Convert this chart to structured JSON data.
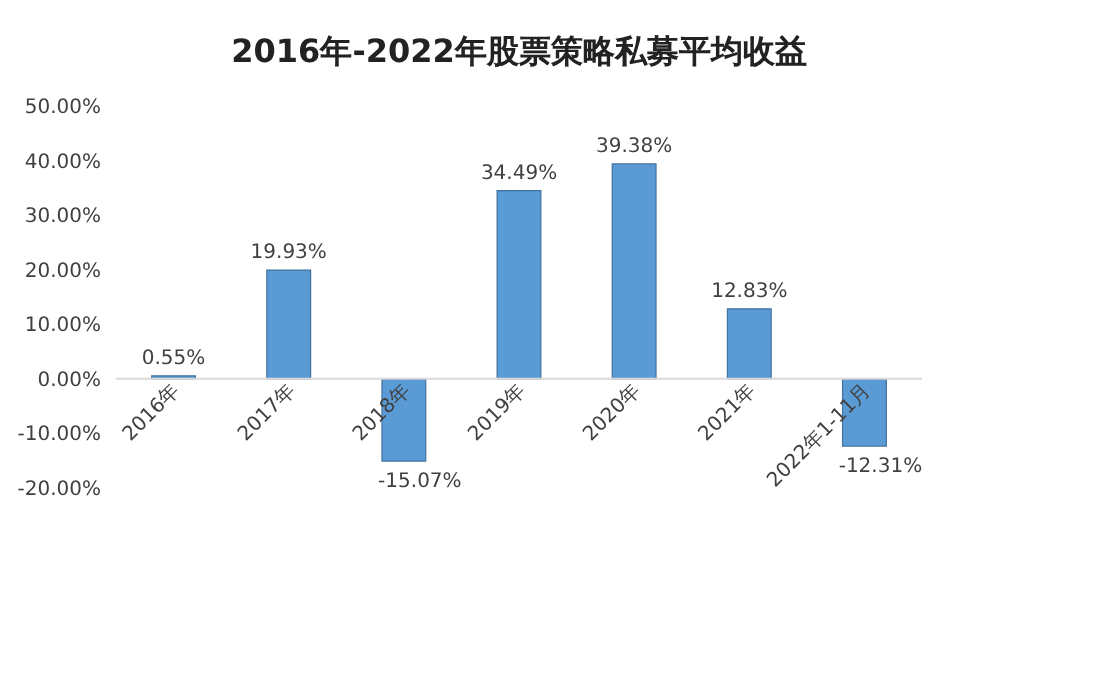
{
  "chart_data": {
    "type": "bar",
    "title": "2016年-2022年股票策略私募平均收益",
    "categories": [
      "2016年",
      "2017年",
      "2018年",
      "2019年",
      "2020年",
      "2021年",
      "2022年1-11月"
    ],
    "values": [
      0.55,
      19.93,
      -15.07,
      34.49,
      39.38,
      12.83,
      -12.31
    ],
    "value_labels": [
      "0.55%",
      "19.93%",
      "-15.07%",
      "34.49%",
      "39.38%",
      "12.83%",
      "-12.31%"
    ],
    "color": "#5b9bd5",
    "ylim": [
      -20,
      50
    ],
    "yticks": [
      {
        "value": -20,
        "label": "-20.00%"
      },
      {
        "value": -10,
        "label": "-10.00%"
      },
      {
        "value": 0,
        "label": "0.00%"
      },
      {
        "value": 10,
        "label": "10.00%"
      },
      {
        "value": 20,
        "label": "20.00%"
      },
      {
        "value": 30,
        "label": "30.00%"
      },
      {
        "value": 40,
        "label": "40.00%"
      },
      {
        "value": 50,
        "label": "50.00%"
      }
    ],
    "grid": false
  }
}
